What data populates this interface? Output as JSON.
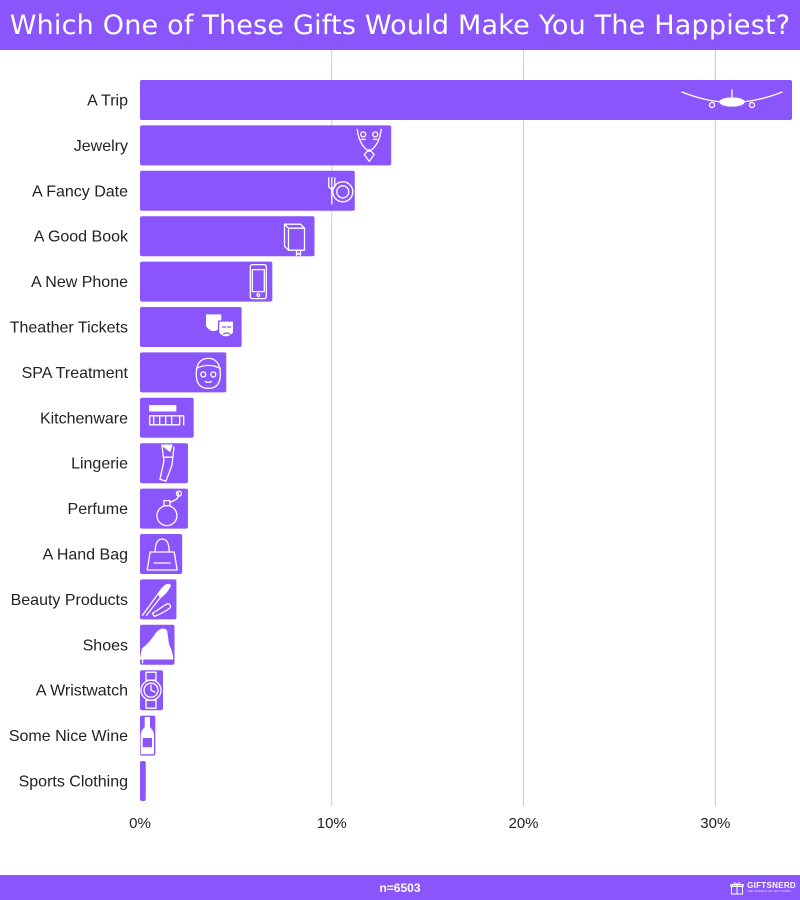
{
  "header": {
    "title": "Which One of These Gifts Would Make You The Happiest?"
  },
  "footer": {
    "sample": "n=6503",
    "logo_text": "GIFTSNERD",
    "logo_tagline": "THE SCIENCE OF GIFT GIVING"
  },
  "colors": {
    "bar": "#8a55fb",
    "banner": "#8a55fb",
    "grid": "#cccccc",
    "label": "#222222",
    "icon": "#ffffff"
  },
  "chart_data": {
    "type": "bar",
    "orientation": "horizontal",
    "title": "Which One of These Gifts Would Make You The Happiest?",
    "categories": [
      "A Trip",
      "Jewelry",
      "A Fancy Date",
      "A Good Book",
      "A New Phone",
      "Theather Tickets",
      "SPA Treatment",
      "Kitchenware",
      "Lingerie",
      "Perfume",
      "A Hand Bag",
      "Beauty Products",
      "Shoes",
      "A Wristwatch",
      "Some Nice Wine",
      "Sports Clothing"
    ],
    "values": [
      34.0,
      13.1,
      11.2,
      9.1,
      6.9,
      5.3,
      4.5,
      2.8,
      2.5,
      2.5,
      2.2,
      1.9,
      1.8,
      1.2,
      0.8,
      0.3
    ],
    "unit": "%",
    "icons": [
      "airplane-icon",
      "jewelry-icon",
      "dining-icon",
      "book-icon",
      "phone-icon",
      "theater-masks-icon",
      "spa-face-icon",
      "kitchenware-icon",
      "lingerie-icon",
      "perfume-icon",
      "handbag-icon",
      "makeup-brush-icon",
      "high-heel-icon",
      "wristwatch-icon",
      "wine-bottle-icon",
      "sports-clothing-icon"
    ],
    "x_ticks": [
      "0%",
      "10%",
      "20%",
      "30%"
    ],
    "x_tick_values": [
      0,
      10,
      20,
      30
    ],
    "xlim": [
      0,
      34.0
    ],
    "xlabel": "",
    "ylabel": "",
    "grid": true,
    "legend": "none"
  }
}
